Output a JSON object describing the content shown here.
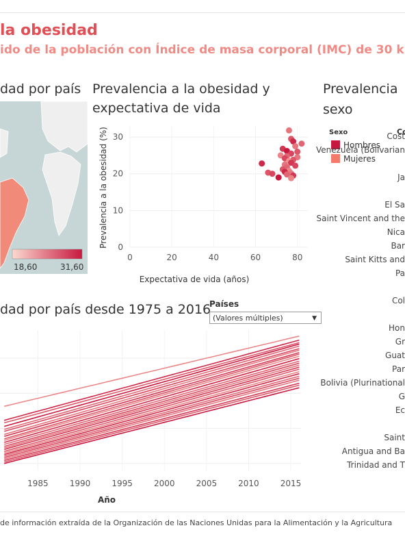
{
  "header": {
    "title": "la obesidad",
    "subtitle": "ido de la población con Índice de masa corporal  (IMC) de 30 k"
  },
  "panels": {
    "map_title": "dad por país",
    "scatter_title_1": "Prevalencia a la obesidad y",
    "scatter_title_2": "expectativa de vida",
    "sex_title_1": "Prevalencia",
    "sex_title_2": "sexo",
    "line_title": "dad por país desde 1975 a 2016"
  },
  "map_legend": {
    "min": "18,60",
    "max": "31,60"
  },
  "filter": {
    "label": "Países",
    "value": "(Valores múltiples)"
  },
  "sex_legend": {
    "title": "Sexo",
    "items": [
      {
        "label": "Hombres",
        "color": "#c8173f"
      },
      {
        "label": "Mujeres",
        "color": "#f47b6c"
      }
    ],
    "column_header": "Co"
  },
  "countries": [
    "Cost",
    "Venezuela (Bolivarian",
    "Ja",
    "El Sa",
    "Saint Vincent and the",
    "Nica",
    "Bar",
    "Saint Kitts and",
    "Pa",
    "Col",
    "Hon",
    "Gr",
    "Guat",
    "Par",
    "Bolivia (Plurinational",
    "G",
    "Ec",
    "Saint",
    "Antigua and Ba",
    "Trinidad and T"
  ],
  "footer": {
    "text": "de información extraída de la Organización de las Naciones Unidas para la Alimentación y la Agricultura"
  },
  "colors": {
    "accent": "#e04f55",
    "men": "#c8173f",
    "women": "#f47b6c",
    "map_water": "#c6d6d6"
  },
  "chart_data": [
    {
      "type": "scatter",
      "title": "Prevalencia a la obesidad y expectativa de vida",
      "xlabel": "Expectativa de vida (años)",
      "ylabel": "Prevalencia a la obesidad (%)",
      "xlim": [
        0,
        85
      ],
      "ylim": [
        0,
        33
      ],
      "xticks": [
        "0",
        "20",
        "40",
        "60",
        "80"
      ],
      "yticks": [
        "0",
        "10",
        "20",
        "30"
      ],
      "grid": true,
      "points": [
        [
          76,
          31.8,
          0.4
        ],
        [
          77,
          29.5,
          0.6
        ],
        [
          78,
          28.8,
          0.9
        ],
        [
          82,
          28.2,
          0.5
        ],
        [
          79,
          27.5,
          0.4
        ],
        [
          73,
          26.8,
          0.8
        ],
        [
          75,
          26.2,
          1.0
        ],
        [
          80,
          26.0,
          0.6
        ],
        [
          77,
          25.5,
          0.7
        ],
        [
          72,
          25.0,
          0.3
        ],
        [
          75,
          24.8,
          0.5
        ],
        [
          80,
          24.5,
          0.4
        ],
        [
          74,
          24.2,
          0.7
        ],
        [
          78,
          23.8,
          0.6
        ],
        [
          76,
          23.5,
          0.2
        ],
        [
          77,
          23.0,
          0.8
        ],
        [
          63,
          22.8,
          0.9
        ],
        [
          74,
          22.5,
          0.4
        ],
        [
          79,
          22.2,
          0.7
        ],
        [
          75,
          21.8,
          0.5
        ],
        [
          73,
          21.2,
          0.6
        ],
        [
          76,
          20.8,
          0.3
        ],
        [
          74,
          20.5,
          0.9
        ],
        [
          66,
          20.3,
          0.6
        ],
        [
          77,
          20.1,
          0.4
        ],
        [
          68,
          20.0,
          0.7
        ],
        [
          75,
          19.8,
          0.5
        ],
        [
          78,
          19.5,
          0.8
        ],
        [
          71,
          19.0,
          1.0
        ],
        [
          77,
          18.8,
          0.3
        ]
      ]
    },
    {
      "type": "line",
      "title": "dad por país desde 1975 a 2016",
      "xlabel": "Año",
      "xlim": [
        1980.5,
        2018
      ],
      "xticks": [
        1985,
        1990,
        1995,
        2000,
        2005,
        2010,
        2015
      ],
      "series": [
        {
          "values_1981_2016": [
            10.8,
            24.8
          ],
          "shade": 0.3
        },
        {
          "values_1981_2016": [
            8.0,
            24.0
          ],
          "shade": 0.9
        },
        {
          "values_1981_2016": [
            7.5,
            23.5
          ],
          "shade": 0.6
        },
        {
          "values_1981_2016": [
            6.8,
            23.2
          ],
          "shade": 1.0
        },
        {
          "values_1981_2016": [
            6.2,
            22.8
          ],
          "shade": 0.5
        },
        {
          "values_1981_2016": [
            5.8,
            22.3
          ],
          "shade": 0.7
        },
        {
          "values_1981_2016": [
            5.2,
            22.0
          ],
          "shade": 0.4
        },
        {
          "values_1981_2016": [
            4.8,
            21.5
          ],
          "shade": 0.8
        },
        {
          "values_1981_2016": [
            4.3,
            21.2
          ],
          "shade": 0.6
        },
        {
          "values_1981_2016": [
            4.0,
            20.8
          ],
          "shade": 0.3
        },
        {
          "values_1981_2016": [
            3.6,
            20.3
          ],
          "shade": 0.9
        },
        {
          "values_1981_2016": [
            3.2,
            19.8
          ],
          "shade": 0.5
        },
        {
          "values_1981_2016": [
            2.8,
            19.4
          ],
          "shade": 0.7
        },
        {
          "values_1981_2016": [
            2.5,
            19.0
          ],
          "shade": 0.4
        },
        {
          "values_1981_2016": [
            2.2,
            18.6
          ],
          "shade": 0.8
        },
        {
          "values_1981_2016": [
            1.8,
            18.2
          ],
          "shade": 0.6
        },
        {
          "values_1981_2016": [
            1.5,
            17.7
          ],
          "shade": 0.3
        },
        {
          "values_1981_2016": [
            1.2,
            17.3
          ],
          "shade": 0.9
        },
        {
          "values_1981_2016": [
            0.9,
            16.8
          ],
          "shade": 0.5
        },
        {
          "values_1981_2016": [
            0.6,
            16.4
          ],
          "shade": 0.7
        },
        {
          "values_1981_2016": [
            0.3,
            16.0
          ],
          "shade": 0.4
        },
        {
          "values_1981_2016": [
            0.0,
            15.4
          ],
          "shade": 0.8
        },
        {
          "values_1981_2016": [
            -0.3,
            15.0
          ],
          "shade": 0.6
        },
        {
          "values_1981_2016": [
            -0.6,
            14.5
          ],
          "shade": 1.0
        }
      ]
    }
  ]
}
